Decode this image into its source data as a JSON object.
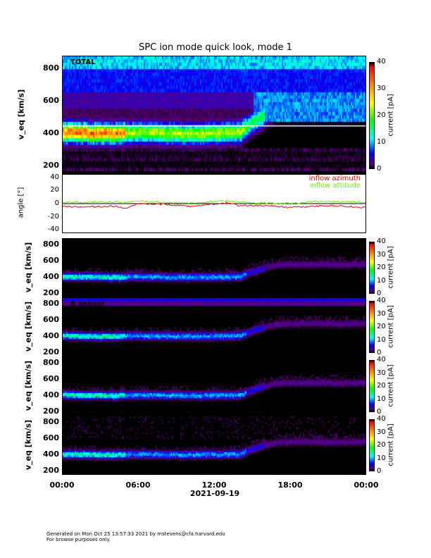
{
  "title": "SPC ion mode quick look, mode 1",
  "footer": {
    "line1": "Generated on Mon Oct 25 13:57:33 2021 by mstevens@cfa.harvard.edu",
    "line2": "For browse purposes only."
  },
  "chart_data": [
    {
      "type": "heatmap",
      "panel": "TOTAL",
      "label": "TOTAL",
      "ylabel": "v_eq [km/s]",
      "yticks": [
        "200",
        "400",
        "600",
        "800"
      ],
      "ylim": [
        150,
        880
      ],
      "colorbar": {
        "label": "current [pA]",
        "ticks": [
          "0",
          "10",
          "20",
          "30",
          "40"
        ],
        "range": [
          0,
          40
        ]
      },
      "bulk_speed_trace": {
        "hours": [
          0,
          2,
          4,
          6,
          8,
          10,
          12,
          14,
          14.5,
          15,
          16,
          17,
          18,
          20,
          22,
          24
        ],
        "speed_kms": [
          410,
          405,
          400,
          410,
          405,
          400,
          405,
          410,
          440,
          470,
          520,
          555,
          560,
          560,
          555,
          560
        ]
      },
      "reference_line_kms": 450
    },
    {
      "type": "line",
      "ylabel": "angle [°]",
      "yticks": [
        "-40",
        "-20",
        "0",
        "20",
        "40"
      ],
      "ylim": [
        -45,
        45
      ],
      "series": [
        {
          "name": "inflow azimuth",
          "color": "#ff0000",
          "hours": [
            0,
            2,
            4,
            5,
            6,
            8,
            10,
            12,
            13,
            14,
            16,
            18,
            20,
            22,
            23.5,
            24
          ],
          "values": [
            -4,
            -5,
            -4,
            -7,
            0,
            -1,
            -4,
            -1,
            1,
            -3,
            -3,
            -6,
            -4,
            -3,
            -6,
            -4
          ]
        },
        {
          "name": "inflow attitude",
          "color": "#66ee00",
          "hours": [
            0,
            2,
            4,
            5,
            6,
            8,
            10,
            12,
            13,
            14,
            16,
            18,
            20,
            22,
            23.5,
            24
          ],
          "values": [
            2,
            2,
            3,
            1,
            4,
            2,
            1,
            3,
            4,
            2,
            1,
            0,
            3,
            3,
            3,
            1
          ]
        }
      ]
    },
    {
      "type": "heatmap",
      "panel": "A",
      "label": "",
      "ylabel": "v_eq [km/s]",
      "yticks": [
        "200",
        "400",
        "600",
        "800"
      ],
      "ylim": [
        150,
        880
      ],
      "colorbar": {
        "label": "current [pA]",
        "ticks": [
          "0",
          "10",
          "20",
          "30",
          "40"
        ],
        "range": [
          0,
          40
        ]
      }
    },
    {
      "type": "heatmap",
      "panel": "B",
      "label": "B sensor",
      "ylabel": "v_eq [km/s]",
      "yticks": [
        "200",
        "400",
        "600",
        "800"
      ],
      "ylim": [
        150,
        880
      ],
      "colorbar": {
        "label": "current [pA]",
        "ticks": [
          "0",
          "10",
          "20",
          "30",
          "40"
        ],
        "range": [
          0,
          40
        ]
      }
    },
    {
      "type": "heatmap",
      "panel": "C",
      "label": "",
      "ylabel": "v_eq [km/s]",
      "yticks": [
        "200",
        "400",
        "600",
        "800"
      ],
      "ylim": [
        150,
        880
      ],
      "colorbar": {
        "label": "current [pA]",
        "ticks": [
          "0",
          "10",
          "20",
          "30",
          "40"
        ],
        "range": [
          0,
          40
        ]
      }
    },
    {
      "type": "heatmap",
      "panel": "D",
      "label": "",
      "ylabel": "v_eq [km/s]",
      "yticks": [
        "200",
        "400",
        "600",
        "800"
      ],
      "ylim": [
        150,
        880
      ],
      "colorbar": {
        "label": "current [pA]",
        "ticks": [
          "0",
          "10",
          "20",
          "30",
          "40"
        ],
        "range": [
          0,
          40
        ]
      }
    }
  ],
  "xaxis": {
    "ticks": [
      "00:00",
      "06:00",
      "12:00",
      "18:00",
      "00:00"
    ],
    "date": "2021-09-19",
    "range_hours": [
      0,
      24
    ]
  }
}
